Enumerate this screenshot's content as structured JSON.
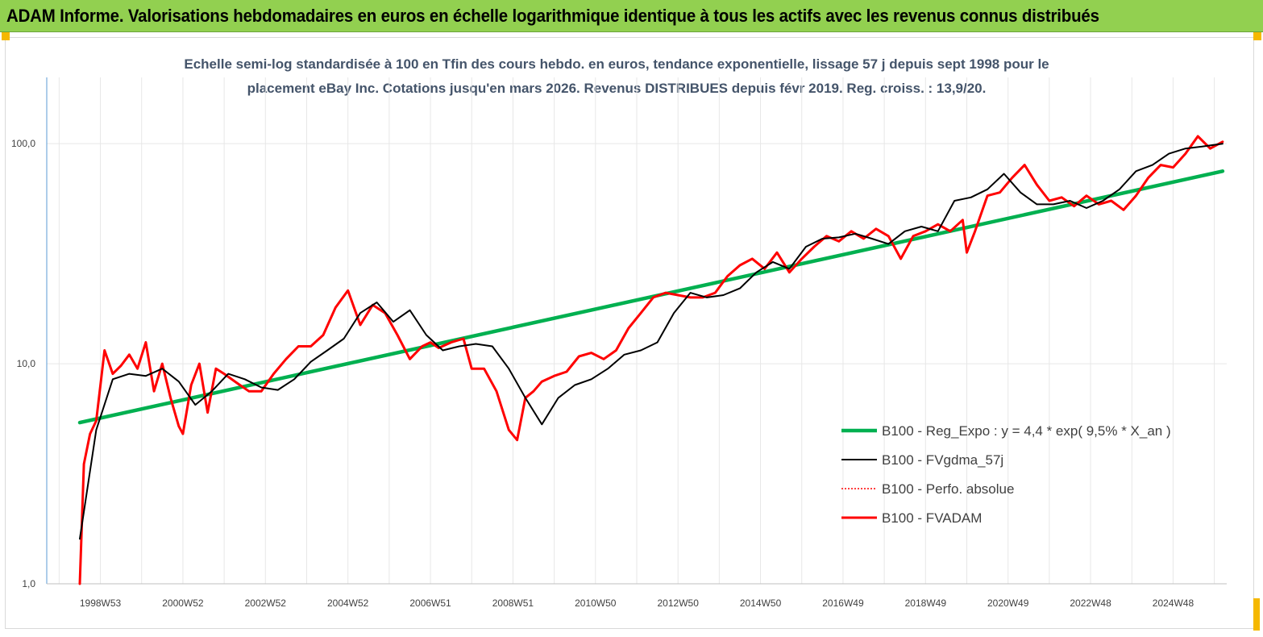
{
  "header": {
    "title": "ADAM Informe. Valorisations hebdomadaires en euros en échelle logarithmique identique à tous les actifs avec les revenus connus distribués"
  },
  "chart_data": {
    "type": "line",
    "title_line1": "Echelle semi-log standardisée à 100 en Tfin des cours hebdo. en euros, tendance exponentielle, lissage 57 j depuis sept 1998 pour le",
    "title_line2": "placement eBay Inc. Cotations jusqu'en mars 2026. Revenus DISTRIBUES depuis févr 2019. Reg. croiss. : 13,9/20.",
    "y_scale": "log",
    "ylim": [
      1,
      200
    ],
    "y_ticks": [
      {
        "value": 1,
        "label": "1,0"
      },
      {
        "value": 10,
        "label": "10,0"
      },
      {
        "value": 100,
        "label": "100,0"
      }
    ],
    "xlim": [
      1997.7,
      2026.3
    ],
    "x_ticks": [
      {
        "label": "1998W53",
        "value": 1999.0
      },
      {
        "label": "2000W52",
        "value": 2001.0
      },
      {
        "label": "2002W52",
        "value": 2003.0
      },
      {
        "label": "2004W52",
        "value": 2005.0
      },
      {
        "label": "2006W51",
        "value": 2007.0
      },
      {
        "label": "2008W51",
        "value": 2009.0
      },
      {
        "label": "2010W50",
        "value": 2011.0
      },
      {
        "label": "2012W50",
        "value": 2013.0
      },
      {
        "label": "2014W50",
        "value": 2015.0
      },
      {
        "label": "2016W49",
        "value": 2017.0
      },
      {
        "label": "2018W49",
        "value": 2019.0
      },
      {
        "label": "2020W49",
        "value": 2021.0
      },
      {
        "label": "2022W48",
        "value": 2023.0
      },
      {
        "label": "2024W48",
        "value": 2025.0
      }
    ],
    "legend_position": "bottom-right",
    "series": [
      {
        "name": "B100 - Reg_Expo : y = 4,4 * exp( 9,5% *  X_an )",
        "color": "#00b050",
        "style": "solid",
        "x": [
          1998.5,
          2026.2
        ],
        "y": [
          5.4,
          75
        ]
      },
      {
        "name": "B100 - FVgdma_57j",
        "color": "#000000",
        "style": "solid",
        "x": [
          1998.5,
          1998.9,
          1999.3,
          1999.7,
          2000.1,
          2000.5,
          2000.9,
          2001.3,
          2001.7,
          2002.1,
          2002.5,
          2002.9,
          2003.3,
          2003.7,
          2004.1,
          2004.5,
          2004.9,
          2005.3,
          2005.7,
          2006.1,
          2006.5,
          2006.9,
          2007.3,
          2007.7,
          2008.1,
          2008.5,
          2008.9,
          2009.3,
          2009.7,
          2010.1,
          2010.5,
          2010.9,
          2011.3,
          2011.7,
          2012.1,
          2012.5,
          2012.9,
          2013.3,
          2013.7,
          2014.1,
          2014.5,
          2014.9,
          2015.3,
          2015.7,
          2016.1,
          2016.5,
          2016.9,
          2017.3,
          2017.7,
          2018.1,
          2018.5,
          2018.9,
          2019.3,
          2019.7,
          2020.1,
          2020.5,
          2020.9,
          2021.3,
          2021.7,
          2022.1,
          2022.5,
          2022.9,
          2023.3,
          2023.7,
          2024.1,
          2024.5,
          2024.9,
          2025.3,
          2025.7,
          2026.2
        ],
        "y": [
          1.6,
          5.0,
          8.5,
          9.0,
          8.8,
          9.5,
          8.3,
          6.5,
          7.5,
          9.0,
          8.5,
          7.8,
          7.6,
          8.5,
          10.2,
          11.5,
          13.0,
          17.0,
          19.0,
          15.5,
          17.5,
          13.5,
          11.5,
          12.0,
          12.3,
          12.0,
          9.5,
          7.0,
          5.3,
          7.0,
          8.0,
          8.5,
          9.5,
          11.0,
          11.5,
          12.5,
          17.0,
          21.0,
          20.0,
          20.5,
          22.0,
          26.0,
          29.0,
          27.0,
          34.0,
          37.0,
          37.5,
          39.0,
          37.0,
          35.0,
          40.0,
          42.0,
          40.0,
          55.0,
          57.0,
          62.0,
          73.0,
          60.0,
          53.0,
          53.0,
          55.0,
          51.0,
          55.0,
          62.0,
          75.0,
          80.0,
          90.0,
          95.0,
          97.0,
          100.0
        ]
      },
      {
        "name": "B100 - Perfo. absolue",
        "color": "#ff0000",
        "style": "dotted",
        "x": [],
        "y": []
      },
      {
        "name": "B100 - FVADAM",
        "color": "#ff0000",
        "style": "solid",
        "x": [
          1998.5,
          1998.6,
          1998.75,
          1998.9,
          1999.1,
          1999.3,
          1999.5,
          1999.7,
          1999.9,
          2000.1,
          2000.3,
          2000.5,
          2000.7,
          2000.9,
          2001.0,
          2001.2,
          2001.4,
          2001.6,
          2001.8,
          2002.0,
          2002.3,
          2002.6,
          2002.9,
          2003.2,
          2003.5,
          2003.8,
          2004.1,
          2004.4,
          2004.7,
          2005.0,
          2005.3,
          2005.6,
          2005.9,
          2006.2,
          2006.5,
          2006.8,
          2007.0,
          2007.2,
          2007.5,
          2007.8,
          2008.0,
          2008.3,
          2008.6,
          2008.9,
          2009.1,
          2009.3,
          2009.5,
          2009.7,
          2010.0,
          2010.3,
          2010.6,
          2010.9,
          2011.2,
          2011.5,
          2011.8,
          2012.1,
          2012.4,
          2012.7,
          2013.0,
          2013.3,
          2013.6,
          2013.9,
          2014.2,
          2014.5,
          2014.8,
          2015.1,
          2015.4,
          2015.7,
          2016.0,
          2016.3,
          2016.6,
          2016.9,
          2017.2,
          2017.5,
          2017.8,
          2018.1,
          2018.4,
          2018.7,
          2019.0,
          2019.3,
          2019.6,
          2019.9,
          2020.0,
          2020.2,
          2020.5,
          2020.8,
          2021.1,
          2021.4,
          2021.7,
          2022.0,
          2022.3,
          2022.6,
          2022.9,
          2023.2,
          2023.5,
          2023.8,
          2024.1,
          2024.4,
          2024.7,
          2025.0,
          2025.3,
          2025.6,
          2025.9,
          2026.2
        ],
        "y": [
          1.0,
          3.5,
          4.8,
          5.5,
          11.5,
          9.0,
          9.8,
          11.0,
          9.5,
          12.5,
          7.5,
          10.0,
          7.0,
          5.2,
          4.8,
          8.0,
          10.0,
          6.0,
          9.5,
          9.0,
          8.2,
          7.5,
          7.5,
          9.0,
          10.5,
          12.0,
          12.0,
          13.5,
          18.0,
          21.5,
          15.0,
          18.5,
          17.0,
          13.5,
          10.5,
          12.0,
          12.5,
          11.8,
          12.5,
          13.0,
          9.5,
          9.5,
          7.5,
          5.0,
          4.5,
          7.0,
          7.5,
          8.3,
          8.8,
          9.2,
          10.8,
          11.2,
          10.5,
          11.5,
          14.5,
          17.0,
          20.0,
          21.0,
          20.5,
          20.0,
          20.0,
          21.0,
          25.0,
          28.0,
          30.0,
          27.0,
          32.0,
          26.0,
          30.0,
          34.0,
          38.0,
          36.0,
          40.0,
          37.0,
          41.0,
          38.0,
          30.0,
          38.0,
          40.0,
          43.0,
          40.0,
          45.0,
          32.0,
          40.0,
          58.0,
          60.0,
          70.0,
          80.0,
          65.0,
          55.0,
          57.0,
          52.0,
          58.0,
          53.0,
          55.0,
          50.0,
          58.0,
          70.0,
          80.0,
          78.0,
          90.0,
          108.0,
          95.0,
          102.0
        ]
      }
    ]
  }
}
